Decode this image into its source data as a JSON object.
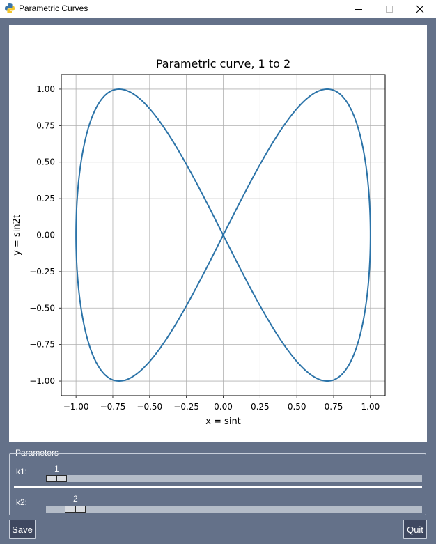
{
  "window": {
    "title": "Parametric Curves",
    "minimize_glyph": "—",
    "maximize_glyph": "☐",
    "close_glyph": "✕"
  },
  "chart_data": {
    "type": "line",
    "title": "Parametric curve, 1 to 2",
    "xlabel": "x = sint",
    "ylabel": "y = sin2t",
    "xlim": [
      -1.1,
      1.1
    ],
    "ylim": [
      -1.1,
      1.1
    ],
    "xticks": [
      -1.0,
      -0.75,
      -0.5,
      -0.25,
      0.0,
      0.25,
      0.5,
      0.75,
      1.0
    ],
    "yticks": [
      -1.0,
      -0.75,
      -0.5,
      -0.25,
      0.0,
      0.25,
      0.5,
      0.75,
      1.0
    ],
    "xtick_labels": [
      "−1.00",
      "−0.75",
      "−0.50",
      "−0.25",
      "0.00",
      "0.25",
      "0.50",
      "0.75",
      "1.00"
    ],
    "ytick_labels": [
      "−1.00",
      "−0.75",
      "−0.50",
      "−0.25",
      "0.00",
      "0.25",
      "0.50",
      "0.75",
      "1.00"
    ],
    "grid": true,
    "line_color": "#2b73a8",
    "series": [
      {
        "x": [
          0.0,
          0.259,
          0.5,
          0.707,
          0.866,
          0.966,
          1.0,
          0.966,
          0.866,
          0.707,
          0.5,
          0.259,
          0.0,
          -0.259,
          -0.5,
          -0.707,
          -0.866,
          -0.966,
          -1.0,
          -0.966,
          -0.866,
          -0.707,
          -0.5,
          -0.259,
          0.0
        ],
        "y": [
          0.0,
          0.5,
          0.866,
          1.0,
          0.866,
          0.5,
          0.0,
          -0.5,
          -0.866,
          -1.0,
          -0.866,
          -0.5,
          0.0,
          0.5,
          0.866,
          1.0,
          0.866,
          0.5,
          0.0,
          -0.5,
          -0.866,
          -1.0,
          -0.866,
          -0.5,
          0.0
        ]
      }
    ]
  },
  "params": {
    "legend": "Parameters",
    "k1": {
      "label": "k1:",
      "value": "1",
      "min": 1,
      "max": 20,
      "current": 1
    },
    "k2": {
      "label": "k2:",
      "value": "2",
      "min": 1,
      "max": 20,
      "current": 2
    }
  },
  "buttons": {
    "save": "Save",
    "quit": "Quit"
  }
}
